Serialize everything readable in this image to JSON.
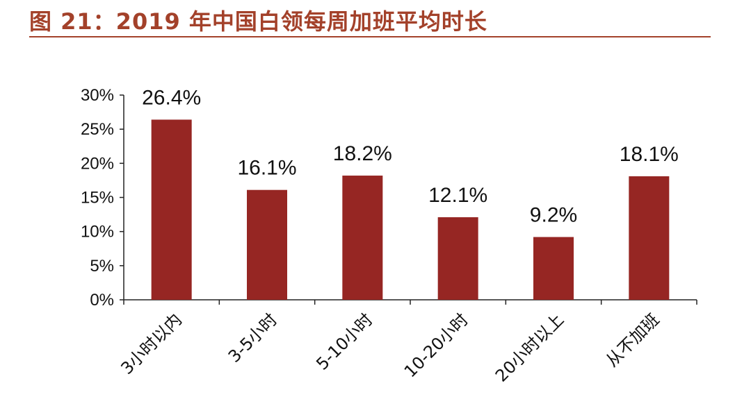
{
  "header": {
    "title": "图 21：2019 年中国白领每周加班平均时长"
  },
  "chart_data": {
    "type": "bar",
    "title": "",
    "xlabel": "",
    "ylabel": "",
    "categories": [
      "3小时以内",
      "3-5小时",
      "5-10小时",
      "10-20小时",
      "20小时以上",
      "从不加班"
    ],
    "values": [
      26.4,
      16.1,
      18.2,
      12.1,
      9.2,
      18.1
    ],
    "data_labels": [
      "26.4%",
      "16.1%",
      "18.2%",
      "12.1%",
      "9.2%",
      "18.1%"
    ],
    "ylim": [
      0,
      30
    ],
    "yticks": [
      0,
      5,
      10,
      15,
      20,
      25,
      30
    ],
    "ytick_labels": [
      "0%",
      "5%",
      "10%",
      "15%",
      "20%",
      "25%",
      "30%"
    ],
    "bar_color": "#962623",
    "grid": false,
    "legend": "none"
  }
}
